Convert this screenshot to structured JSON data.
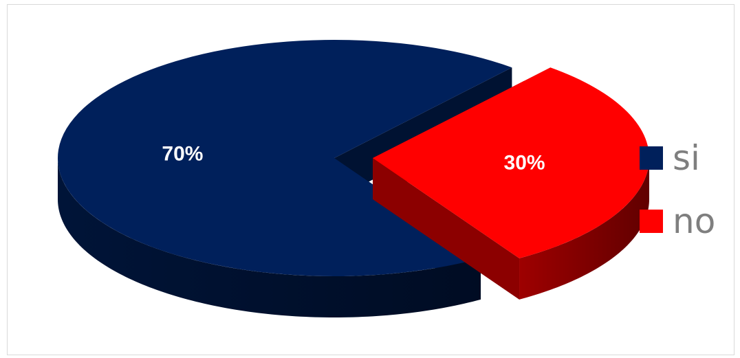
{
  "chart_data": {
    "type": "pie",
    "style": "3d-exploded",
    "categories": [
      "si",
      "no"
    ],
    "values": [
      70,
      30
    ],
    "data_labels": [
      "70%",
      "30%"
    ],
    "colors": [
      "#00205b",
      "#ff0000"
    ],
    "legend_position": "right",
    "title": ""
  }
}
